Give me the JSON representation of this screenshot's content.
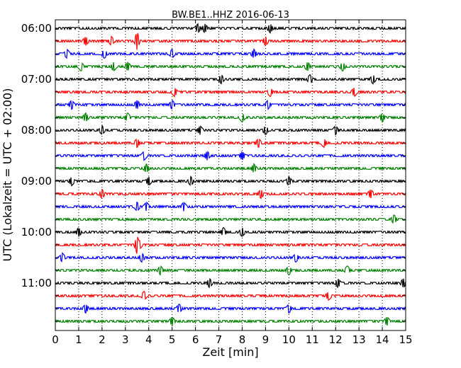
{
  "chart_data": {
    "type": "line",
    "title": "BW.BE1..HHZ 2016-06-13",
    "xlabel": "Zeit  [min]",
    "ylabel": "UTC (Lokalzeit = UTC + 02:00)",
    "xlim": [
      0,
      15
    ],
    "x_ticks": [
      0,
      1,
      2,
      3,
      4,
      5,
      6,
      7,
      8,
      9,
      10,
      11,
      12,
      13,
      14,
      15
    ],
    "y_tick_labels": [
      "06:00",
      "07:00",
      "08:00",
      "09:00",
      "10:00",
      "11:00"
    ],
    "grid": "vertical dotted",
    "line_colors": [
      "#000000",
      "#ff0000",
      "#0000ff",
      "#008000"
    ],
    "series": [
      {
        "start": "06:00",
        "events": [
          6.1,
          6.4,
          9.2
        ]
      },
      {
        "start": "06:15",
        "events": [
          1.3,
          2.4,
          3.5,
          9.0
        ]
      },
      {
        "start": "06:30",
        "events": [
          0.5,
          2.1,
          5.0,
          8.5
        ]
      },
      {
        "start": "06:45",
        "events": [
          1.1,
          2.5,
          3.1,
          10.8,
          12.3
        ]
      },
      {
        "start": "07:00",
        "events": [
          7.1,
          10.9,
          13.6
        ]
      },
      {
        "start": "07:15",
        "events": [
          5.1,
          9.2,
          12.8
        ]
      },
      {
        "start": "07:30",
        "events": [
          0.7,
          3.5,
          5.0,
          9.1
        ]
      },
      {
        "start": "07:45",
        "events": [
          1.3,
          3.1,
          8.0,
          14.0
        ]
      },
      {
        "start": "08:00",
        "events": [
          2.0,
          6.2,
          9.0,
          12.0
        ]
      },
      {
        "start": "08:15",
        "events": [
          3.5,
          8.7,
          11.5
        ]
      },
      {
        "start": "08:30",
        "events": [
          3.8,
          6.5,
          8.0
        ]
      },
      {
        "start": "08:45",
        "events": [
          3.9,
          8.5
        ]
      },
      {
        "start": "09:00",
        "events": [
          0.7,
          4.0,
          5.8,
          10.0
        ]
      },
      {
        "start": "09:15",
        "events": [
          2.0,
          8.8,
          13.5
        ]
      },
      {
        "start": "09:30",
        "events": [
          3.5,
          3.9,
          5.5
        ]
      },
      {
        "start": "09:45",
        "events": [
          14.5
        ]
      },
      {
        "start": "10:00",
        "events": [
          1.0,
          7.2,
          8.0
        ]
      },
      {
        "start": "10:15",
        "events": [
          3.5,
          3.6
        ]
      },
      {
        "start": "10:30",
        "events": [
          0.3,
          3.7,
          10.3
        ]
      },
      {
        "start": "10:45",
        "events": [
          4.5,
          10.0,
          12.5
        ]
      },
      {
        "start": "11:00",
        "events": [
          6.6,
          12.1,
          14.9
        ]
      },
      {
        "start": "11:15",
        "events": [
          3.8,
          11.7
        ]
      },
      {
        "start": "11:30",
        "events": [
          1.3,
          5.3,
          10.0
        ]
      },
      {
        "start": "11:45",
        "events": [
          5.0,
          14.2
        ]
      }
    ]
  }
}
